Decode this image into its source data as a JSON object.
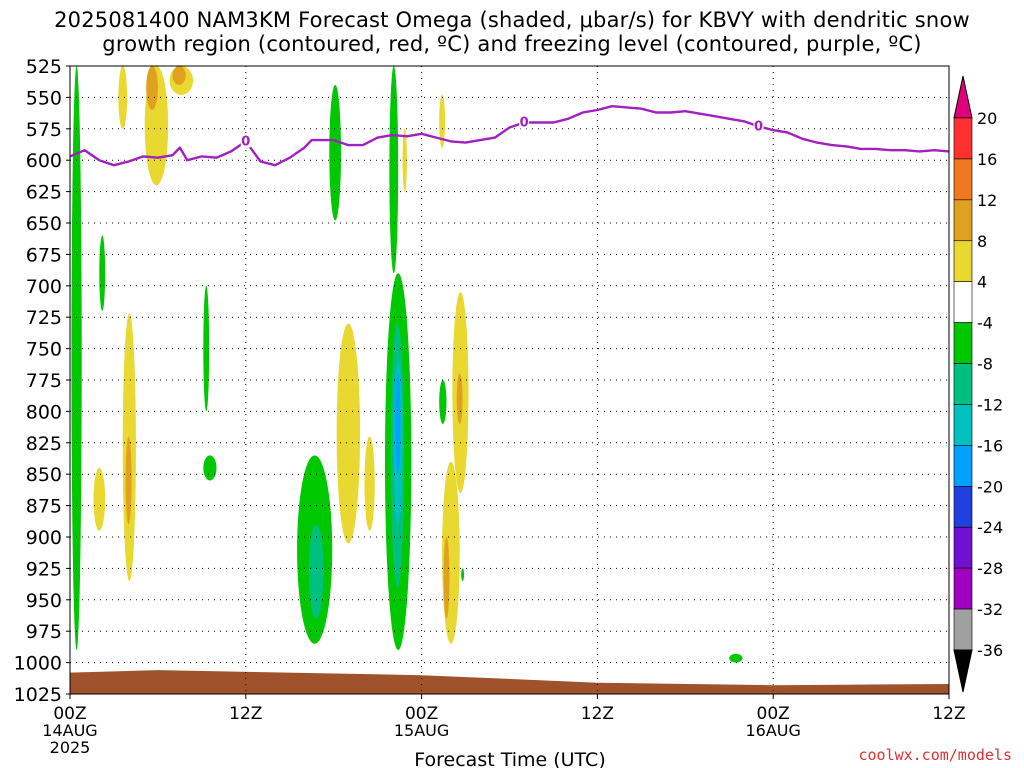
{
  "title": {
    "line1": "2025081400 NAM3KM Forecast Omega (shaded, μbar/s) for KBVY with dendritic snow",
    "line2": "growth region (contoured, red, ºC) and freezing level (contoured, purple, ºC)"
  },
  "credit": "coolwx.com/models",
  "colors": {
    "freezing_level": "#a020c0",
    "ground": "#a0522d",
    "grid": "#000000"
  },
  "chart_data": {
    "type": "heatmap",
    "xlabel": "Forecast Time (UTC)",
    "ylabel": "",
    "x_unit": "hours from 2025-08-14 00Z",
    "xlim": [
      0,
      60
    ],
    "ylim": [
      1025,
      525
    ],
    "grid": true,
    "y_ticks": [
      525,
      550,
      575,
      600,
      625,
      650,
      675,
      700,
      725,
      750,
      775,
      800,
      825,
      850,
      875,
      900,
      925,
      950,
      975,
      1000,
      1025
    ],
    "x_ticks": [
      {
        "x": 0,
        "label": "00Z",
        "sub1": "14AUG",
        "sub2": "2025"
      },
      {
        "x": 12,
        "label": "12Z",
        "sub1": "",
        "sub2": ""
      },
      {
        "x": 24,
        "label": "00Z",
        "sub1": "15AUG",
        "sub2": ""
      },
      {
        "x": 36,
        "label": "12Z",
        "sub1": "",
        "sub2": ""
      },
      {
        "x": 48,
        "label": "00Z",
        "sub1": "16AUG",
        "sub2": ""
      },
      {
        "x": 60,
        "label": "12Z",
        "sub1": "",
        "sub2": ""
      }
    ],
    "freezing_level": {
      "label": "0",
      "label_positions": [
        [
          12,
          585
        ],
        [
          31,
          570
        ],
        [
          47,
          573
        ]
      ],
      "points": [
        [
          0,
          597
        ],
        [
          1,
          592
        ],
        [
          2,
          600
        ],
        [
          3,
          604
        ],
        [
          4,
          601
        ],
        [
          5,
          597
        ],
        [
          6,
          598
        ],
        [
          7,
          596
        ],
        [
          7.5,
          590
        ],
        [
          8,
          600
        ],
        [
          9,
          597
        ],
        [
          10,
          598
        ],
        [
          11,
          593
        ],
        [
          12,
          585
        ],
        [
          13,
          601
        ],
        [
          14,
          604
        ],
        [
          15,
          598
        ],
        [
          16,
          590
        ],
        [
          16.5,
          584
        ],
        [
          18,
          584
        ],
        [
          19,
          588
        ],
        [
          20,
          588
        ],
        [
          21,
          582
        ],
        [
          22,
          580
        ],
        [
          23,
          581
        ],
        [
          24,
          579
        ],
        [
          25,
          582
        ],
        [
          26,
          585
        ],
        [
          27,
          586
        ],
        [
          28,
          584
        ],
        [
          29,
          582
        ],
        [
          30,
          574
        ],
        [
          31,
          570
        ],
        [
          32,
          570
        ],
        [
          33,
          570
        ],
        [
          34,
          567
        ],
        [
          35,
          562
        ],
        [
          36,
          560
        ],
        [
          37,
          557
        ],
        [
          38,
          558
        ],
        [
          39,
          559
        ],
        [
          40,
          562
        ],
        [
          41,
          562
        ],
        [
          42,
          561
        ],
        [
          43,
          563
        ],
        [
          44,
          565
        ],
        [
          45,
          567
        ],
        [
          46,
          569
        ],
        [
          47,
          573
        ],
        [
          48,
          576
        ],
        [
          49,
          578
        ],
        [
          50,
          583
        ],
        [
          51,
          586
        ],
        [
          52,
          588
        ],
        [
          53,
          589
        ],
        [
          54,
          591
        ],
        [
          55,
          591
        ],
        [
          56,
          592
        ],
        [
          57,
          592
        ],
        [
          58,
          593
        ],
        [
          59,
          592
        ],
        [
          60,
          593
        ]
      ]
    },
    "ground_top_pressure": [
      [
        0,
        1008
      ],
      [
        6,
        1006
      ],
      [
        24,
        1010
      ],
      [
        36,
        1016
      ],
      [
        48,
        1018
      ],
      [
        60,
        1017
      ]
    ],
    "colorbar": {
      "labels": [
        "20",
        "16",
        "12",
        "8",
        "4",
        "-4",
        "-8",
        "-12",
        "-16",
        "-20",
        "-24",
        "-28",
        "-32",
        "-36"
      ],
      "colors": [
        "#e0007a",
        "#ff3030",
        "#f07820",
        "#e0a020",
        "#e8d830",
        "#ffffff",
        "#00c800",
        "#00c080",
        "#00c0c0",
        "#00a0ff",
        "#2040e0",
        "#7010d0",
        "#a000c0",
        "#a0a0a0",
        "#000000"
      ]
    },
    "omega_regions": [
      {
        "name": "green-left-edge",
        "color": "#00c800",
        "x": 0.1,
        "w": 0.7,
        "p_top": 525,
        "p_bot": 990
      },
      {
        "name": "yellow-top-1",
        "color": "#e8d830",
        "x": 3.3,
        "w": 0.6,
        "p_top": 525,
        "p_bot": 575
      },
      {
        "name": "yellow-top-2",
        "color": "#e8d830",
        "x": 5.1,
        "w": 1.6,
        "p_top": 525,
        "p_bot": 620
      },
      {
        "name": "orange-top-2",
        "color": "#e0a020",
        "x": 5.2,
        "w": 0.8,
        "p_top": 525,
        "p_bot": 560
      },
      {
        "name": "yellow-top-3",
        "color": "#e8d830",
        "x": 6.8,
        "w": 1.6,
        "p_top": 525,
        "p_bot": 548
      },
      {
        "name": "orange-top-3",
        "color": "#e0a020",
        "x": 7.0,
        "w": 0.9,
        "p_top": 525,
        "p_bot": 540
      },
      {
        "name": "green-top-mid",
        "color": "#00c800",
        "x": 17.7,
        "w": 0.8,
        "p_top": 540,
        "p_bot": 648
      },
      {
        "name": "green-vertical-24",
        "color": "#00c800",
        "x": 21.8,
        "w": 0.6,
        "p_top": 525,
        "p_bot": 690
      },
      {
        "name": "yellow-thin-22",
        "color": "#e8d830",
        "x": 22.7,
        "w": 0.3,
        "p_top": 575,
        "p_bot": 625
      },
      {
        "name": "yellow-thin-26",
        "color": "#e8d830",
        "x": 25.2,
        "w": 0.4,
        "p_top": 548,
        "p_bot": 590
      },
      {
        "name": "green-small-2",
        "color": "#00c800",
        "x": 2.0,
        "w": 0.4,
        "p_top": 660,
        "p_bot": 720
      },
      {
        "name": "green-small-9",
        "color": "#00c800",
        "x": 9.1,
        "w": 0.4,
        "p_top": 700,
        "p_bot": 800
      },
      {
        "name": "green-box-9",
        "color": "#00c800",
        "x": 9.1,
        "w": 0.9,
        "p_top": 835,
        "p_bot": 855
      },
      {
        "name": "yellow-4",
        "color": "#e8d830",
        "x": 3.6,
        "w": 0.9,
        "p_top": 722,
        "p_bot": 935
      },
      {
        "name": "orange-4",
        "color": "#e0a020",
        "x": 3.8,
        "w": 0.4,
        "p_top": 820,
        "p_bot": 890
      },
      {
        "name": "yellow-2",
        "color": "#e8d830",
        "x": 1.6,
        "w": 0.8,
        "p_top": 845,
        "p_bot": 895
      },
      {
        "name": "green-17",
        "color": "#00c800",
        "x": 15.5,
        "w": 2.4,
        "p_top": 835,
        "p_bot": 985
      },
      {
        "name": "teal-17",
        "color": "#00c080",
        "x": 16.3,
        "w": 1.0,
        "p_top": 890,
        "p_bot": 965
      },
      {
        "name": "yellow-19",
        "color": "#e8d830",
        "x": 18.2,
        "w": 1.6,
        "p_top": 730,
        "p_bot": 905
      },
      {
        "name": "yellow-20",
        "color": "#e8d830",
        "x": 20.1,
        "w": 0.7,
        "p_top": 820,
        "p_bot": 895
      },
      {
        "name": "green-22-big",
        "color": "#00c800",
        "x": 21.5,
        "w": 1.8,
        "p_top": 690,
        "p_bot": 990
      },
      {
        "name": "teal-22",
        "color": "#00c080",
        "x": 21.9,
        "w": 0.9,
        "p_top": 730,
        "p_bot": 940
      },
      {
        "name": "cyan-22",
        "color": "#00c0c0",
        "x": 22.1,
        "w": 0.6,
        "p_top": 760,
        "p_bot": 890
      },
      {
        "name": "blue-22",
        "color": "#00a0ff",
        "x": 22.2,
        "w": 0.35,
        "p_top": 770,
        "p_bot": 850
      },
      {
        "name": "green-25",
        "color": "#00c800",
        "x": 25.2,
        "w": 0.5,
        "p_top": 775,
        "p_bot": 810
      },
      {
        "name": "yellow-25",
        "color": "#e8d830",
        "x": 25.4,
        "w": 1.2,
        "p_top": 840,
        "p_bot": 985
      },
      {
        "name": "orange-25",
        "color": "#e0a020",
        "x": 25.5,
        "w": 0.4,
        "p_top": 900,
        "p_bot": 965
      },
      {
        "name": "yellow-27",
        "color": "#e8d830",
        "x": 26.1,
        "w": 1.1,
        "p_top": 705,
        "p_bot": 865
      },
      {
        "name": "orange-27",
        "color": "#e0a020",
        "x": 26.4,
        "w": 0.4,
        "p_top": 770,
        "p_bot": 810
      },
      {
        "name": "green-dot-27",
        "color": "#00c800",
        "x": 26.7,
        "w": 0.2,
        "p_top": 925,
        "p_bot": 935
      },
      {
        "name": "green-dot-46",
        "color": "#00c800",
        "x": 45.0,
        "w": 0.9,
        "p_top": 993,
        "p_bot": 1000
      }
    ]
  }
}
